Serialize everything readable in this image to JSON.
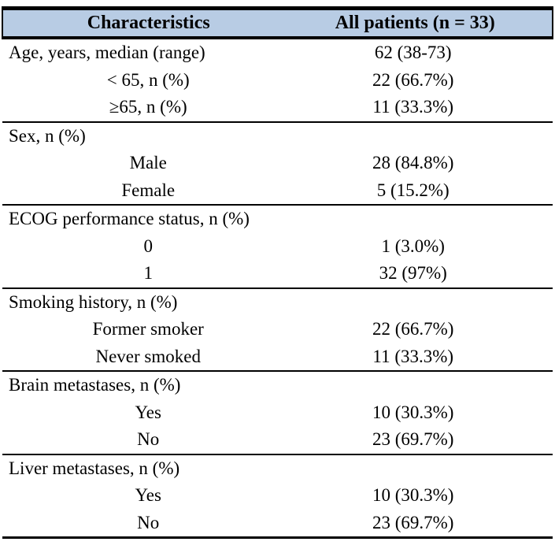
{
  "colors": {
    "header_bg": "#b8cce4",
    "border": "#000000",
    "text": "#000000",
    "background": "#ffffff"
  },
  "table": {
    "header": {
      "col1": "Characteristics",
      "col2": "All patients (n = 33)"
    },
    "sections": [
      {
        "rows": [
          {
            "label": "Age, years, median (range)",
            "value": "62 (38-73)",
            "indent": false
          },
          {
            "label": "< 65, n (%)",
            "value": "22 (66.7%)",
            "indent": true
          },
          {
            "label": "≥65, n (%)",
            "value": "11 (33.3%)",
            "indent": true
          }
        ]
      },
      {
        "rows": [
          {
            "label": "Sex, n (%)",
            "value": "",
            "indent": false
          },
          {
            "label": "Male",
            "value": "28 (84.8%)",
            "indent": true
          },
          {
            "label": "Female",
            "value": "5 (15.2%)",
            "indent": true
          }
        ]
      },
      {
        "rows": [
          {
            "label": "ECOG performance status, n (%)",
            "value": "",
            "indent": false
          },
          {
            "label": "0",
            "value": "1 (3.0%)",
            "indent": true
          },
          {
            "label": "1",
            "value": "32 (97%)",
            "indent": true
          }
        ]
      },
      {
        "rows": [
          {
            "label": "Smoking history, n (%)",
            "value": "",
            "indent": false
          },
          {
            "label": "Former smoker",
            "value": "22 (66.7%)",
            "indent": true
          },
          {
            "label": "Never smoked",
            "value": "11 (33.3%)",
            "indent": true
          }
        ]
      },
      {
        "rows": [
          {
            "label": "Brain metastases, n (%)",
            "value": "",
            "indent": false
          },
          {
            "label": "Yes",
            "value": "10 (30.3%)",
            "indent": true
          },
          {
            "label": "No",
            "value": "23 (69.7%)",
            "indent": true
          }
        ]
      },
      {
        "rows": [
          {
            "label": "Liver metastases, n (%)",
            "value": "",
            "indent": false
          },
          {
            "label": "Yes",
            "value": "10 (30.3%)",
            "indent": true
          },
          {
            "label": "No",
            "value": "23 (69.7%)",
            "indent": true
          }
        ]
      }
    ]
  }
}
